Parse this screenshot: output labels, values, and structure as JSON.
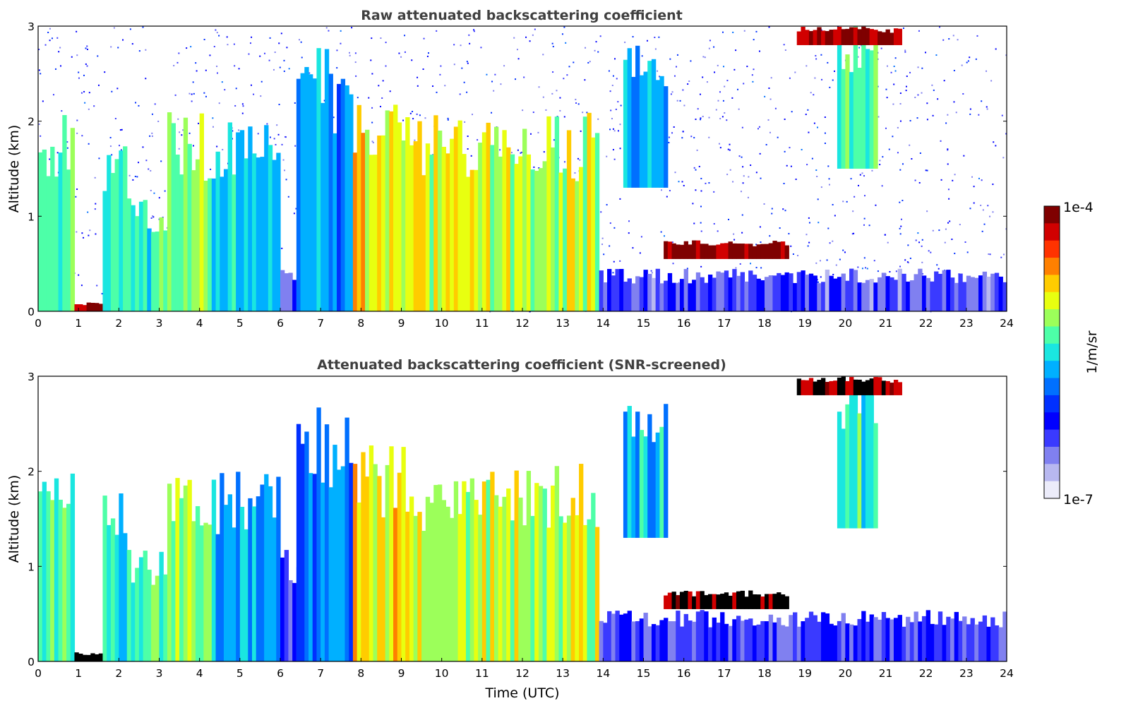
{
  "chart_data": [
    {
      "type": "heatmap",
      "title": "Raw attenuated backscattering coefficient",
      "xlabel": "",
      "ylabel": "Altitude (km)",
      "xlim": [
        0,
        24
      ],
      "ylim": [
        0,
        3
      ],
      "xticks": [
        0,
        1,
        2,
        3,
        4,
        5,
        6,
        7,
        8,
        9,
        10,
        11,
        12,
        13,
        14,
        15,
        16,
        17,
        18,
        19,
        20,
        21,
        22,
        23,
        24
      ],
      "yticks": [
        0,
        1,
        2,
        3
      ],
      "noise_background": true,
      "saturated_color": "#7f0000",
      "features": [
        {
          "x": [
            0.0,
            0.9
          ],
          "y": [
            0.0,
            2.1
          ],
          "level": 0.55
        },
        {
          "x": [
            0.9,
            1.6
          ],
          "y": [
            0.0,
            0.1
          ],
          "level": 1.0
        },
        {
          "x": [
            1.6,
            2.3
          ],
          "y": [
            0.0,
            1.8
          ],
          "level": 0.5
        },
        {
          "x": [
            2.3,
            3.2
          ],
          "y": [
            0.0,
            1.2
          ],
          "level": 0.55
        },
        {
          "x": [
            3.2,
            4.3
          ],
          "y": [
            0.0,
            2.1
          ],
          "level": 0.6
        },
        {
          "x": [
            4.3,
            6.0
          ],
          "y": [
            0.0,
            2.0
          ],
          "level": 0.45
        },
        {
          "x": [
            6.0,
            7.8
          ],
          "y": [
            0.0,
            0.5
          ],
          "level": 0.18
        },
        {
          "x": [
            6.4,
            7.8
          ],
          "y": [
            0.0,
            2.8
          ],
          "level": 0.4
        },
        {
          "x": [
            7.8,
            9.5
          ],
          "y": [
            0.0,
            2.3
          ],
          "level": 0.72
        },
        {
          "x": [
            9.5,
            13.9
          ],
          "y": [
            0.0,
            2.1
          ],
          "level": 0.65
        },
        {
          "x": [
            13.9,
            24.0
          ],
          "y": [
            0.0,
            0.45
          ],
          "level": 0.18
        },
        {
          "x": [
            15.5,
            18.6
          ],
          "y": [
            0.55,
            0.75
          ],
          "level": 1.0
        },
        {
          "x": [
            19.8,
            20.8
          ],
          "y": [
            1.5,
            3.0
          ],
          "level": 0.55
        },
        {
          "x": [
            18.8,
            21.4
          ],
          "y": [
            2.8,
            3.0
          ],
          "level": 1.0
        },
        {
          "x": [
            14.5,
            15.6
          ],
          "y": [
            1.3,
            2.8
          ],
          "level": 0.45
        }
      ]
    },
    {
      "type": "heatmap",
      "title": "Attenuated backscattering coefficient (SNR-screened)",
      "xlabel": "Time (UTC)",
      "ylabel": "Altitude (km)",
      "xlim": [
        0,
        24
      ],
      "ylim": [
        0,
        3
      ],
      "xticks": [
        0,
        1,
        2,
        3,
        4,
        5,
        6,
        7,
        8,
        9,
        10,
        11,
        12,
        13,
        14,
        15,
        16,
        17,
        18,
        19,
        20,
        21,
        22,
        23,
        24
      ],
      "yticks": [
        0,
        1,
        2,
        3
      ],
      "noise_background": false,
      "saturated_color": "#000000",
      "features": [
        {
          "x": [
            0.0,
            0.9
          ],
          "y": [
            0.0,
            2.1
          ],
          "level": 0.55
        },
        {
          "x": [
            0.9,
            1.6
          ],
          "y": [
            0.0,
            0.1
          ],
          "level": 1.0
        },
        {
          "x": [
            1.6,
            2.3
          ],
          "y": [
            0.0,
            1.8
          ],
          "level": 0.5
        },
        {
          "x": [
            2.3,
            3.2
          ],
          "y": [
            0.0,
            1.2
          ],
          "level": 0.55
        },
        {
          "x": [
            3.2,
            4.3
          ],
          "y": [
            0.0,
            2.1
          ],
          "level": 0.6
        },
        {
          "x": [
            4.3,
            6.0
          ],
          "y": [
            0.0,
            2.0
          ],
          "level": 0.45
        },
        {
          "x": [
            6.0,
            7.8
          ],
          "y": [
            0.0,
            1.2
          ],
          "level": 0.2
        },
        {
          "x": [
            6.4,
            7.8
          ],
          "y": [
            0.0,
            2.8
          ],
          "level": 0.4
        },
        {
          "x": [
            7.8,
            9.5
          ],
          "y": [
            0.0,
            2.3
          ],
          "level": 0.72
        },
        {
          "x": [
            9.5,
            13.9
          ],
          "y": [
            0.0,
            2.1
          ],
          "level": 0.65
        },
        {
          "x": [
            13.9,
            24.0
          ],
          "y": [
            0.0,
            0.55
          ],
          "level": 0.18
        },
        {
          "x": [
            15.5,
            18.6
          ],
          "y": [
            0.55,
            0.75
          ],
          "level": 1.0
        },
        {
          "x": [
            19.8,
            20.8
          ],
          "y": [
            1.4,
            3.0
          ],
          "level": 0.55
        },
        {
          "x": [
            18.8,
            21.4
          ],
          "y": [
            2.8,
            3.0
          ],
          "level": 1.0
        },
        {
          "x": [
            14.5,
            15.6
          ],
          "y": [
            1.3,
            2.8
          ],
          "level": 0.45
        }
      ]
    }
  ],
  "colorbar": {
    "label": "1/m/sr",
    "max_label": "1e-4",
    "min_label": "1e-7",
    "colors": [
      "#7f0000",
      "#d10000",
      "#ff3300",
      "#ff8000",
      "#ffcc00",
      "#e8ff10",
      "#9cff5a",
      "#4dffa8",
      "#1ae6e0",
      "#00b0ff",
      "#0070ff",
      "#0030ff",
      "#0000ff",
      "#3a3aff",
      "#8080f0",
      "#b8b8f0",
      "#ececfa"
    ]
  }
}
